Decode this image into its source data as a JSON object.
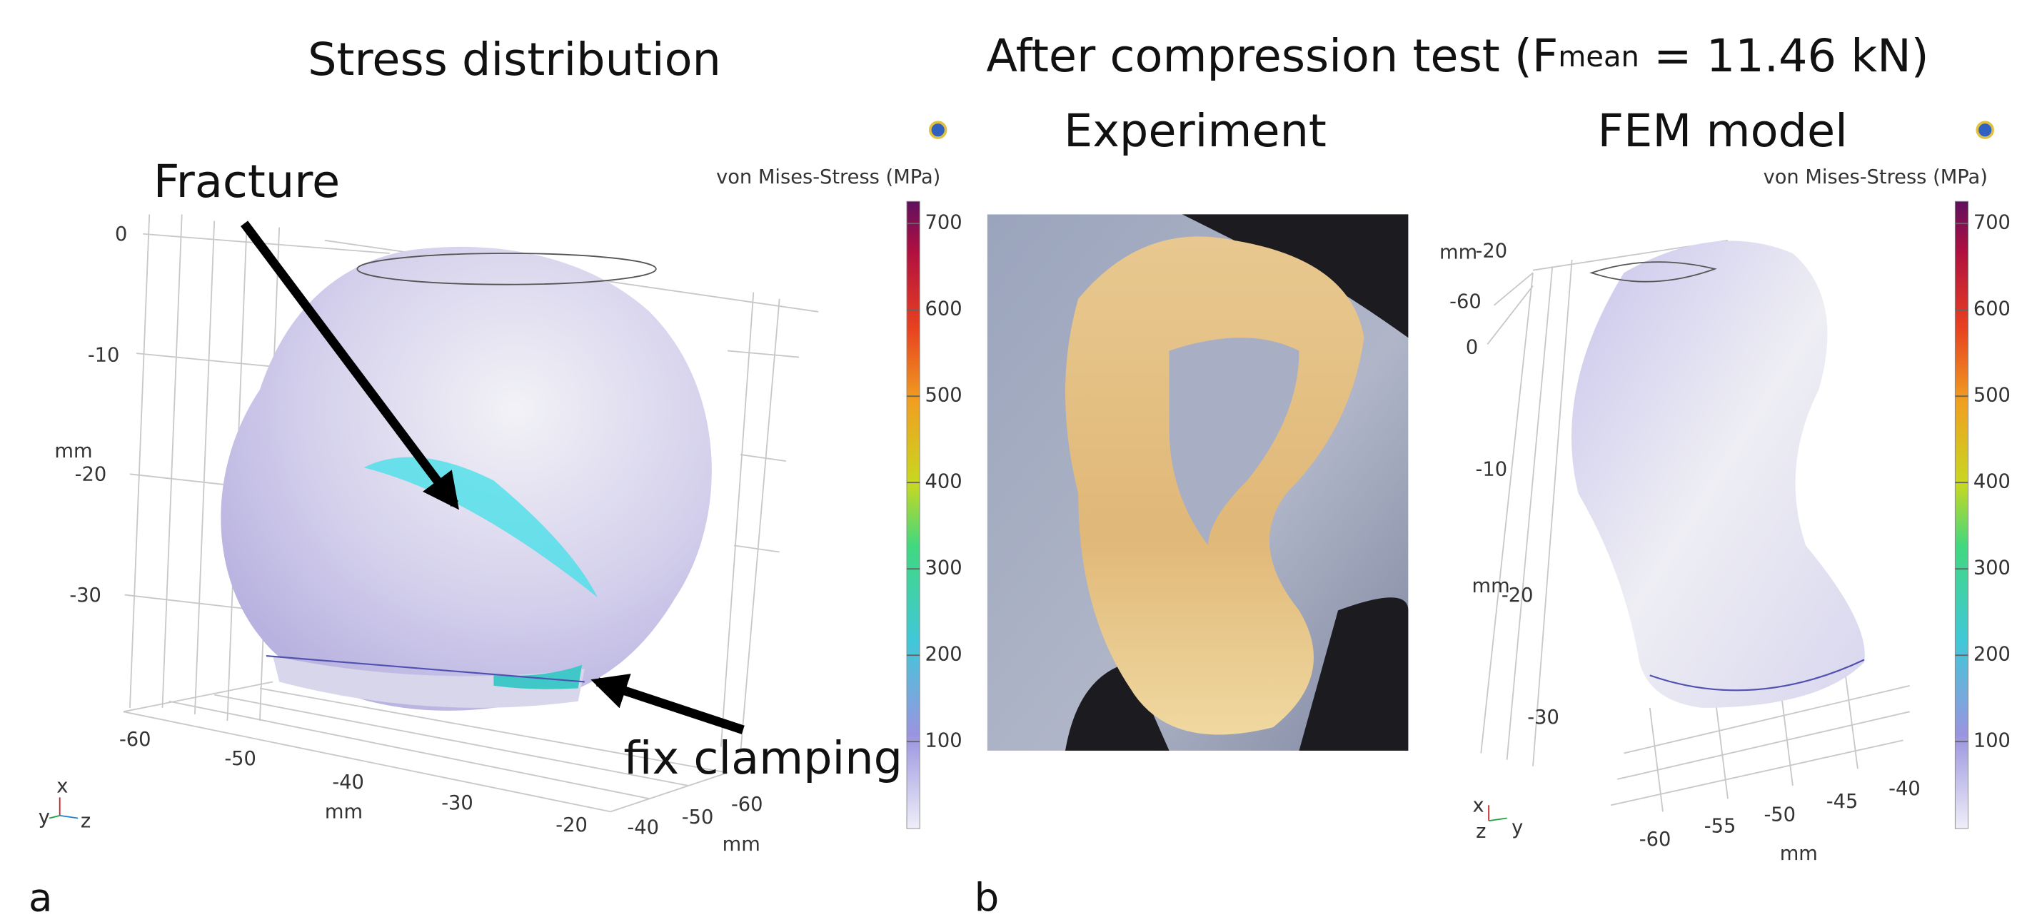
{
  "left_panel": {
    "title": "Stress distribution",
    "annotations": {
      "fracture": "Fracture",
      "clamping": "fix clamping"
    },
    "colorbar": {
      "label": "von Mises-Stress (MPa)",
      "ticks": [
        "700",
        "600",
        "500",
        "400",
        "300",
        "200",
        "100"
      ]
    },
    "axes": {
      "vertical_label": "mm",
      "vertical_ticks": [
        "0",
        "-10",
        "-20",
        "-30"
      ],
      "x_label": "mm",
      "x_ticks": [
        "-60",
        "-50",
        "-40",
        "-30",
        "-20"
      ],
      "z_label": "mm",
      "z_ticks": [
        "-40",
        "-50",
        "-60"
      ],
      "triad": [
        "x",
        "y",
        "z"
      ]
    },
    "panel_letter": "a"
  },
  "right_panel": {
    "title": {
      "before": "After compression test (F",
      "subscript": "mean",
      "after": " = 11.46 kN)"
    },
    "experiment_label": "Experiment",
    "model_label": "FEM model",
    "colorbar": {
      "label": "von Mises-Stress (MPa)",
      "ticks": [
        "700",
        "600",
        "500",
        "400",
        "300",
        "200",
        "100"
      ]
    },
    "axes": {
      "top_label": "mm",
      "top_ticks": [
        "-20",
        "-60",
        "0"
      ],
      "vertical_label": "mm",
      "vertical_ticks": [
        "-10",
        "-20",
        "-30"
      ],
      "x_label": "mm",
      "x_ticks": [
        "-60",
        "-55",
        "-50",
        "-45",
        "-40"
      ],
      "triad": [
        "x",
        "y",
        "z"
      ]
    },
    "panel_letter": "b"
  }
}
